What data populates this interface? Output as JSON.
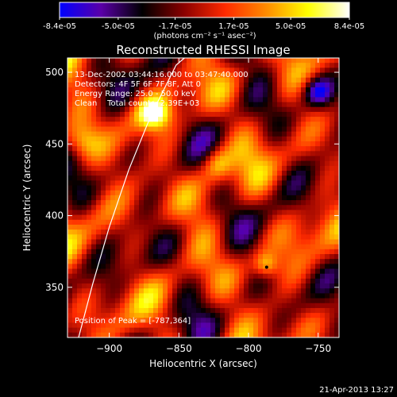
{
  "colorbar": {
    "tick_labels": [
      "-8.4e-05",
      "-5.0e-05",
      "-1.7e-05",
      "1.7e-05",
      "5.0e-05",
      "8.4e-05"
    ],
    "tick_values": [
      -8.4e-05,
      -5e-05,
      -1.7e-05,
      1.7e-05,
      5e-05,
      8.4e-05
    ],
    "range": [
      -8.4e-05,
      8.4e-05
    ],
    "units_label": "(photons cm⁻² s⁻¹ asec⁻²)",
    "colormap": [
      "#0000ff",
      "#5a00a8",
      "#000000",
      "#8a0000",
      "#ff2a00",
      "#ff8c00",
      "#ffff00",
      "#ffffff"
    ]
  },
  "chart_data": {
    "type": "heatmap",
    "title": "Reconstructed RHESSI Image",
    "xlabel": "Heliocentric X (arcsec)",
    "ylabel": "Heliocentric Y (arcsec)",
    "xlim": [
      -930,
      -735
    ],
    "ylim": [
      315,
      510
    ],
    "xticks": [
      -900,
      -850,
      -800,
      -750
    ],
    "yticks": [
      350,
      400,
      450,
      500
    ],
    "xtick_labels": [
      "−900",
      "−850",
      "−800",
      "−750"
    ],
    "ytick_labels": [
      "350",
      "400",
      "450",
      "500"
    ],
    "peak": [
      -787,
      364
    ],
    "annotations": {
      "line1": "13-Dec-2002 03:44:16.000 to 03:47:40.000",
      "line2": "Detectors: 4F 5F 6F 7F 8F, Att 0",
      "line3": "Energy Range: 25.0 - 50.0 keV",
      "line4": "Clean    Total counts: 2.39E+03",
      "peak_label": "Position of Peak = [-787,364]"
    },
    "limb_curve_note": "white solar limb arc",
    "limb_points": [
      [
        -922,
        315
      ],
      [
        -912,
        352
      ],
      [
        -900,
        392
      ],
      [
        -886,
        432
      ],
      [
        -870,
        470
      ],
      [
        -852,
        505
      ],
      [
        -846,
        510
      ]
    ]
  },
  "footer": {
    "date": "21-Apr-2013 13:27"
  }
}
